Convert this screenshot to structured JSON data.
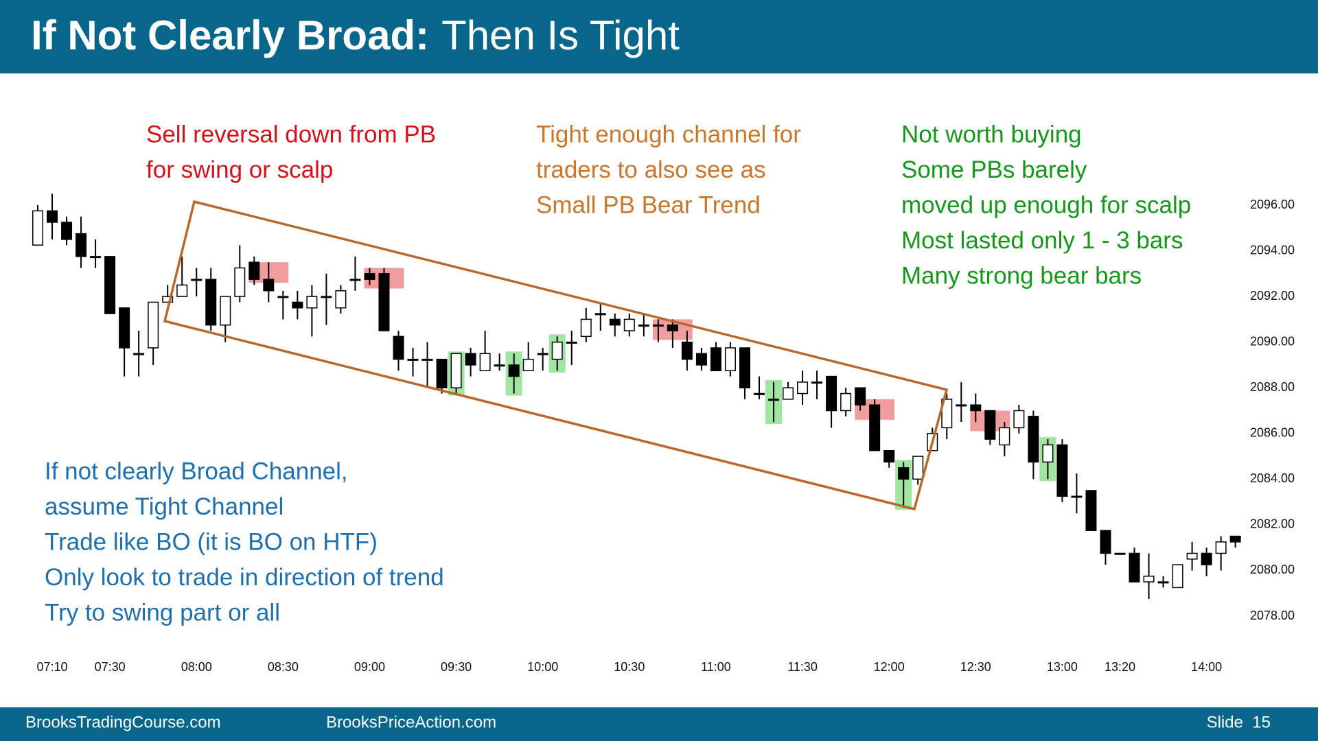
{
  "header": {
    "title_bold": "If Not Clearly Broad:",
    "title_rest": "Then Is Tight"
  },
  "annotations": [
    {
      "color": "#d4111b",
      "lines": [
        "Sell reversal down from PB",
        "for swing or scalp"
      ]
    },
    {
      "color": "#c8772e",
      "lines": [
        "Tight enough channel for",
        "traders to also see as",
        "Small PB Bear Trend"
      ]
    },
    {
      "color": "#16961a",
      "lines": [
        "Not worth buying",
        "Some PBs barely",
        "moved up enough for scalp",
        "Most lasted only 1 - 3 bars",
        "Many strong bear bars"
      ]
    },
    {
      "color": "#1f6fae",
      "lines": [
        "If not clearly Broad Channel,",
        "assume Tight Channel",
        "Trade like BO (it is BO on HTF)",
        "Only look to trade in direction of trend",
        "Try to swing part or all"
      ]
    }
  ],
  "footer": {
    "left": "BrooksTradingCourse.com",
    "middle": "BrooksPriceAction.com",
    "right": "Slide  15"
  },
  "chart_data": {
    "type": "candlestick",
    "open": [
      2094.25,
      2095.75,
      2095.25,
      2094.75,
      2093.75,
      2093.75,
      2091.5,
      2089.5,
      2089.75,
      2091.75,
      2092,
      2092.75,
      2092.75,
      2090.75,
      2092,
      2093.5,
      2092.75,
      2092,
      2091.75,
      2091.5,
      2092,
      2091.5,
      2092.75,
      2093,
      2093,
      2090.25,
      2089.25,
      2089.25,
      2089.25,
      2088,
      2089.5,
      2088.75,
      2089,
      2089,
      2088.75,
      2089.5,
      2089.25,
      2090,
      2090.25,
      2091.25,
      2091,
      2090.5,
      2090.75,
      2090.75,
      2090.75,
      2090,
      2089.5,
      2089.75,
      2088.75,
      2089.75,
      2087.75,
      2087.5,
      2087.5,
      2087.75,
      2088.25,
      2088.5,
      2087,
      2088,
      2087.25,
      2085.25,
      2084.5,
      2084,
      2085.25,
      2086.25,
      2087.25,
      2087.25,
      2087,
      2085.5,
      2086.25,
      2086.75,
      2084.75,
      2085.5,
      2083.25,
      2083.5,
      2081.75,
      2080.75,
      2080.75,
      2079.5,
      2079.5,
      2079.25,
      2080.5,
      2080.75,
      2080.75,
      2081.5
    ],
    "high": [
      2096,
      2096.5,
      2095.5,
      2095.5,
      2094.5,
      2093.75,
      2091.5,
      2090.5,
      2091.75,
      2092.5,
      2093.75,
      2093.25,
      2093.25,
      2092,
      2094.25,
      2093.75,
      2093.5,
      2092.25,
      2092.25,
      2092.5,
      2093,
      2092.5,
      2093.75,
      2093.25,
      2093.25,
      2090.5,
      2089.75,
      2090,
      2089.25,
      2089.5,
      2089.75,
      2090.5,
      2089.5,
      2089.5,
      2090,
      2089.75,
      2090.25,
      2090.5,
      2091.5,
      2091.75,
      2091.25,
      2091.25,
      2091.25,
      2091,
      2091,
      2090.5,
      2089.75,
      2090,
      2090,
      2089.75,
      2088.5,
      2088.25,
      2088.25,
      2088.75,
      2088.75,
      2088.5,
      2088,
      2088,
      2087.5,
      2085.25,
      2084.75,
      2085,
      2086.25,
      2087.75,
      2088.25,
      2087.75,
      2087,
      2086.5,
      2087.25,
      2087,
      2085.75,
      2085.75,
      2084.25,
      2083.5,
      2081.75,
      2080.75,
      2081,
      2080.75,
      2079.75,
      2080.25,
      2081.25,
      2081,
      2081.5,
      2081.5
    ],
    "low": [
      2094.25,
      2094.5,
      2094.25,
      2093.25,
      2093.25,
      2091.25,
      2088.5,
      2088.5,
      2089,
      2091.75,
      2092,
      2092,
      2090.5,
      2090,
      2091.75,
      2092.5,
      2091.75,
      2091,
      2091,
      2090.25,
      2090.75,
      2091.25,
      2092.25,
      2092.5,
      2090.5,
      2088.75,
      2088.5,
      2088,
      2087.75,
      2087.75,
      2088.5,
      2088.75,
      2088.75,
      2087.75,
      2088.75,
      2088.75,
      2088.75,
      2089,
      2090,
      2090.5,
      2090.25,
      2090.25,
      2090.25,
      2090,
      2089.75,
      2088.75,
      2088.75,
      2088.75,
      2088.5,
      2087.5,
      2087.5,
      2086.5,
      2087.5,
      2087.25,
      2087.5,
      2086.25,
      2086.75,
      2087,
      2085.25,
      2084.5,
      2082.75,
      2083.75,
      2085.25,
      2085.75,
      2086.5,
      2086.5,
      2085.5,
      2085,
      2086,
      2084,
      2084,
      2083,
      2082.5,
      2081.75,
      2080.25,
      2080.75,
      2079.5,
      2078.75,
      2079.25,
      2079.25,
      2080,
      2079.75,
      2080,
      2081
    ],
    "close": [
      2095.75,
      2095.25,
      2094.5,
      2093.75,
      2093.75,
      2091.25,
      2089.75,
      2089.5,
      2091.75,
      2092,
      2092.5,
      2092.75,
      2090.75,
      2092,
      2093.25,
      2092.75,
      2092.25,
      2092,
      2091.5,
      2092,
      2092,
      2092.25,
      2092.75,
      2092.75,
      2090.5,
      2089.25,
      2089.25,
      2089.25,
      2088,
      2089.5,
      2089,
      2089.5,
      2089,
      2088.5,
      2089.25,
      2089.5,
      2090,
      2090,
      2091,
      2091.25,
      2090.75,
      2091,
      2090.75,
      2090.75,
      2090.5,
      2089.25,
      2089,
      2088.75,
      2089.75,
      2088,
      2087.75,
      2087.5,
      2088,
      2088.25,
      2088.25,
      2087,
      2087.75,
      2087.25,
      2085.25,
      2084.75,
      2084,
      2085,
      2086,
      2087.5,
      2087.25,
      2087,
      2085.75,
      2086.25,
      2087,
      2084.75,
      2085.5,
      2083.25,
      2083.25,
      2081.75,
      2080.75,
      2080.75,
      2079.5,
      2079.75,
      2079.5,
      2080.25,
      2080.75,
      2080.25,
      2081.25,
      2081.25
    ],
    "highlight": [
      null,
      null,
      null,
      null,
      null,
      null,
      null,
      null,
      null,
      null,
      null,
      null,
      null,
      null,
      null,
      null,
      "#f08c8c",
      null,
      null,
      null,
      null,
      null,
      null,
      null,
      "#f08c8c",
      null,
      null,
      null,
      null,
      "#90e090",
      null,
      null,
      null,
      "#90e090",
      null,
      null,
      "#90e090",
      null,
      null,
      null,
      null,
      null,
      null,
      null,
      "#f08c8c",
      null,
      null,
      null,
      null,
      null,
      null,
      "#90e090",
      null,
      null,
      null,
      null,
      null,
      null,
      "#f08c8c",
      null,
      "#90e090",
      null,
      null,
      null,
      null,
      null,
      "#f08c8c",
      null,
      null,
      null,
      "#90e090",
      null,
      null,
      null,
      null,
      null,
      null,
      null,
      null,
      null,
      null,
      null,
      null,
      null
    ],
    "xticks": [
      {
        "value": 1,
        "label": "07:10"
      },
      {
        "value": 5,
        "label": "07:30"
      },
      {
        "value": 11,
        "label": "08:00"
      },
      {
        "value": 17,
        "label": "08:30"
      },
      {
        "value": 23,
        "label": "09:00"
      },
      {
        "value": 29,
        "label": "09:30"
      },
      {
        "value": 35,
        "label": "10:00"
      },
      {
        "value": 41,
        "label": "10:30"
      },
      {
        "value": 47,
        "label": "11:00"
      },
      {
        "value": 53,
        "label": "11:30"
      },
      {
        "value": 59,
        "label": "12:00"
      },
      {
        "value": 65,
        "label": "12:30"
      },
      {
        "value": 71,
        "label": "13:00"
      },
      {
        "value": 75,
        "label": "13:20"
      },
      {
        "value": 81,
        "label": "14:00"
      }
    ],
    "ylim": [
      2078,
      2096
    ],
    "yticks": [
      {
        "value": 2078,
        "label": "2078.00"
      },
      {
        "value": 2080,
        "label": "2080.00"
      },
      {
        "value": 2082,
        "label": "2082.00"
      },
      {
        "value": 2084,
        "label": "2084.00"
      },
      {
        "value": 2086,
        "label": "2086.00"
      },
      {
        "value": 2088,
        "label": "2088.00"
      },
      {
        "value": 2090,
        "label": "2090.00"
      },
      {
        "value": 2092,
        "label": "2092.00"
      },
      {
        "value": 2094,
        "label": "2094.00"
      },
      {
        "value": 2096,
        "label": "2096.00"
      }
    ],
    "up_color": "#ffffff",
    "down_color": "#000000",
    "wick_color": "#000000"
  }
}
